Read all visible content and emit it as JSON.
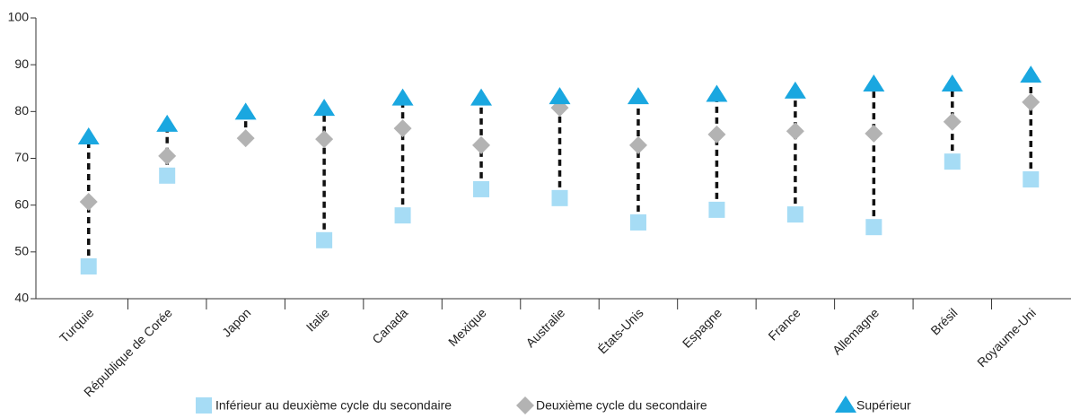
{
  "chart_data": {
    "type": "dot_range",
    "categories": [
      "Turquie",
      "République de Corée",
      "Japon",
      "Italie",
      "Canada",
      "Mexique",
      "Australie",
      "États-Unis",
      "Espagne",
      "France",
      "Allemagne",
      "Brésil",
      "Royaume-Uni"
    ],
    "series": [
      {
        "name": "Inférieur au deuxième cycle du secondaire",
        "color": "#a6dcf5",
        "marker": "square",
        "values": [
          46.9,
          66.3,
          null,
          52.5,
          57.8,
          63.4,
          61.5,
          56.3,
          59.0,
          58.0,
          55.3,
          69.3,
          65.5
        ]
      },
      {
        "name": "Deuxième cycle du secondaire",
        "color": "#b3b3b3",
        "marker": "diamond",
        "values": [
          60.7,
          70.5,
          74.3,
          74.1,
          76.4,
          72.8,
          80.8,
          72.8,
          75.1,
          75.8,
          75.3,
          77.8,
          82.0
        ]
      },
      {
        "name": "Supérieur",
        "color": "#1aa7e0",
        "marker": "triangle",
        "values": [
          74.7,
          77.4,
          80.0,
          80.8,
          83.0,
          83.0,
          83.3,
          83.3,
          83.8,
          84.5,
          86.0,
          86.0,
          87.9
        ]
      }
    ],
    "ylim": [
      40,
      100
    ],
    "yticks": [
      40,
      50,
      60,
      70,
      80,
      90,
      100
    ]
  }
}
